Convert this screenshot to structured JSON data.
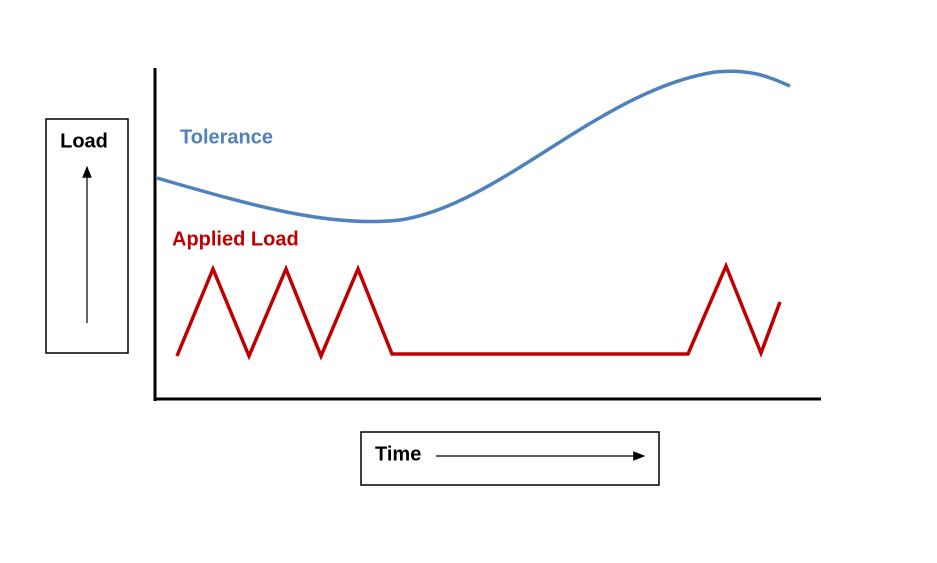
{
  "y_axis_label": "Load",
  "x_axis_label": "Time",
  "curves": [
    {
      "label": "Tolerance"
    },
    {
      "label": "Applied Load"
    }
  ]
}
